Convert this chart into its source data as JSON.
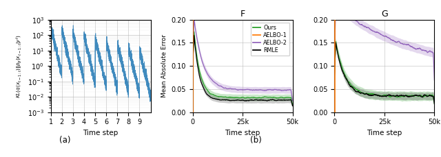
{
  "panel_a_title": "(a)",
  "panel_b_title": "(b)",
  "subplot_F_title": "F",
  "subplot_G_title": "G",
  "xlabel_a": "Time step",
  "xlabel_F": "Time step",
  "xlabel_G": "Time step",
  "ylabel_b": "Mean Absolute Error",
  "ylim_F": [
    0.0,
    0.2
  ],
  "ylim_G": [
    0.0,
    0.2
  ],
  "xlim_F": [
    0,
    50000
  ],
  "xlim_G": [
    0,
    50000
  ],
  "xticks_FG": [
    0,
    25000,
    50000
  ],
  "xtick_labels_FG": [
    "0",
    "25k",
    "50k"
  ],
  "yticks_FG": [
    0.0,
    0.05,
    0.1,
    0.15,
    0.2
  ],
  "ytick_labels_FG": [
    "0.00",
    "0.05",
    "0.10",
    "0.15",
    "0.20"
  ],
  "colors": {
    "ours": "#2ca02c",
    "aelbo1": "#ff7f0e",
    "aelbo2": "#9467bd",
    "rmle": "#000000",
    "kl_line": "#1f77b4"
  },
  "legend_entries": [
    "Ours",
    "AELBO-1",
    "AELBO-2",
    "RMLE"
  ]
}
